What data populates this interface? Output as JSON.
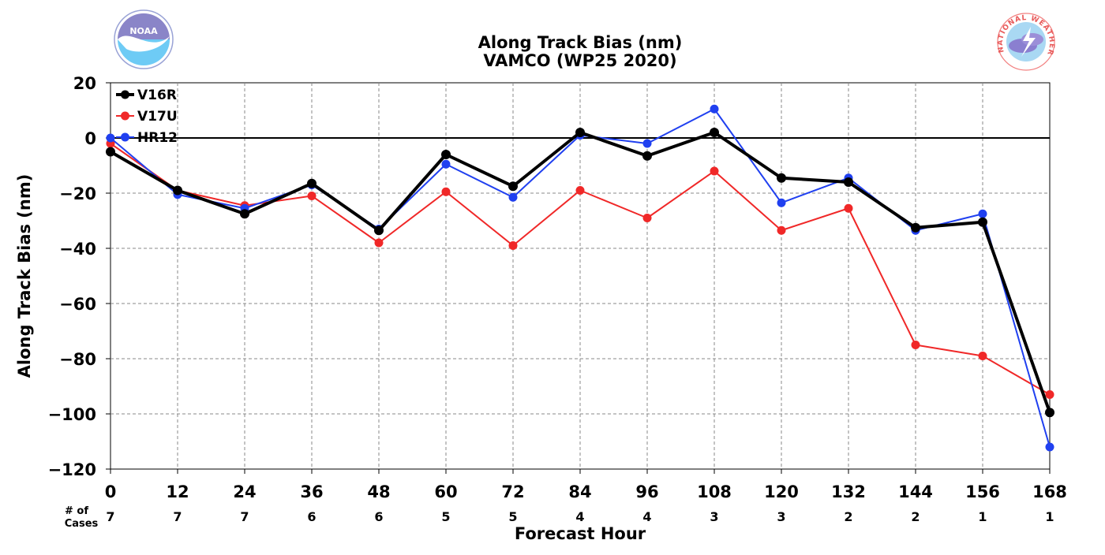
{
  "chart_data": {
    "type": "line",
    "title": "Along Track Bias (nm)",
    "subtitle": "VAMCO (WP25 2020)",
    "xlabel": "Forecast Hour",
    "ylabel": "Along Track Bias (nm)",
    "x": [
      0,
      12,
      24,
      36,
      48,
      60,
      72,
      84,
      96,
      108,
      120,
      132,
      144,
      156,
      168
    ],
    "x_tick_labels": [
      "0",
      "12",
      "24",
      "36",
      "48",
      "60",
      "72",
      "84",
      "96",
      "108",
      "120",
      "132",
      "144",
      "156",
      "168"
    ],
    "ylim": [
      -120,
      20
    ],
    "xlim": [
      0,
      168
    ],
    "y_ticks": [
      20,
      0,
      -20,
      -40,
      -60,
      -80,
      -100,
      -120
    ],
    "y_tick_labels": [
      "20",
      "0",
      "−20",
      "−40",
      "−60",
      "−80",
      "−100",
      "−120"
    ],
    "grid": true,
    "legend_position": "top-left",
    "cases_label_line1": "# of",
    "cases_label_line2": "Cases",
    "cases": [
      "7",
      "7",
      "7",
      "6",
      "6",
      "5",
      "5",
      "4",
      "4",
      "3",
      "3",
      "2",
      "2",
      "1",
      "1"
    ],
    "series": [
      {
        "name": "V16R",
        "color": "#000000",
        "line_width": 4,
        "values": [
          -5,
          -19,
          -27.5,
          -16.5,
          -33.5,
          -6,
          -17.5,
          2,
          -6.5,
          2,
          -14.5,
          -16,
          -32.5,
          -30.5,
          -99.5
        ]
      },
      {
        "name": "V17U",
        "color": "#f02828",
        "line_width": 2,
        "values": [
          -2,
          -19,
          -24.5,
          -21,
          -38,
          -19.5,
          -39,
          -19,
          -29,
          -12,
          -33.5,
          -25.5,
          -75,
          -79,
          -93
        ]
      },
      {
        "name": "HR12",
        "color": "#2040f0",
        "line_width": 2,
        "values": [
          0,
          -20.5,
          -25.5,
          -17,
          -33,
          -9.5,
          -21.5,
          1,
          -2,
          10.5,
          -23.5,
          -14.5,
          -33.5,
          -27.5,
          -112
        ]
      }
    ]
  },
  "logos": {
    "noaa_text": "NOAA",
    "nws_text": "NATIONAL WEATHER SERVICE"
  }
}
